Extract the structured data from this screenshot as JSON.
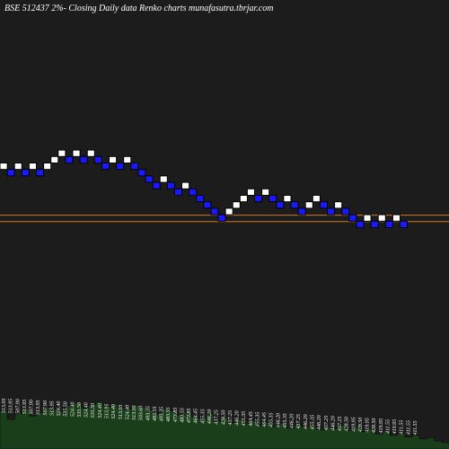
{
  "chart_data": {
    "type": "renko",
    "title": "BSE 512437 2%-  Closing Daily data  Renko  charts munafasutra.tbrjar.com",
    "colors": {
      "background": "#1c1c1c",
      "up_brick": "#ffffff",
      "down_brick": "#1919ff",
      "brick_border": "#000000",
      "reference_line": "#d2781e",
      "volume_fill": "#1a3d1a",
      "volume_border": "#0a0a0a",
      "label_text": "#ffffff"
    },
    "bricks": [
      {
        "dir": "up",
        "level": 9
      },
      {
        "dir": "down",
        "level": 8
      },
      {
        "dir": "up",
        "level": 9
      },
      {
        "dir": "down",
        "level": 8
      },
      {
        "dir": "up",
        "level": 9
      },
      {
        "dir": "down",
        "level": 8
      },
      {
        "dir": "up",
        "level": 9
      },
      {
        "dir": "up",
        "level": 10
      },
      {
        "dir": "up",
        "level": 11
      },
      {
        "dir": "down",
        "level": 10
      },
      {
        "dir": "up",
        "level": 11
      },
      {
        "dir": "down",
        "level": 10
      },
      {
        "dir": "up",
        "level": 11
      },
      {
        "dir": "down",
        "level": 10
      },
      {
        "dir": "down",
        "level": 9
      },
      {
        "dir": "up",
        "level": 10
      },
      {
        "dir": "down",
        "level": 9
      },
      {
        "dir": "up",
        "level": 10
      },
      {
        "dir": "down",
        "level": 9
      },
      {
        "dir": "down",
        "level": 8
      },
      {
        "dir": "down",
        "level": 7
      },
      {
        "dir": "down",
        "level": 6
      },
      {
        "dir": "up",
        "level": 7
      },
      {
        "dir": "down",
        "level": 6
      },
      {
        "dir": "down",
        "level": 5
      },
      {
        "dir": "up",
        "level": 6
      },
      {
        "dir": "down",
        "level": 5
      },
      {
        "dir": "down",
        "level": 4
      },
      {
        "dir": "down",
        "level": 3
      },
      {
        "dir": "down",
        "level": 2
      },
      {
        "dir": "down",
        "level": 1
      },
      {
        "dir": "up",
        "level": 2
      },
      {
        "dir": "up",
        "level": 3
      },
      {
        "dir": "up",
        "level": 4
      },
      {
        "dir": "up",
        "level": 5
      },
      {
        "dir": "down",
        "level": 4
      },
      {
        "dir": "up",
        "level": 5
      },
      {
        "dir": "down",
        "level": 4
      },
      {
        "dir": "down",
        "level": 3
      },
      {
        "dir": "up",
        "level": 4
      },
      {
        "dir": "down",
        "level": 3
      },
      {
        "dir": "down",
        "level": 2
      },
      {
        "dir": "up",
        "level": 3
      },
      {
        "dir": "up",
        "level": 4
      },
      {
        "dir": "down",
        "level": 3
      },
      {
        "dir": "down",
        "level": 2
      },
      {
        "dir": "up",
        "level": 3
      },
      {
        "dir": "down",
        "level": 2
      },
      {
        "dir": "down",
        "level": 1
      },
      {
        "dir": "down",
        "level": 0
      },
      {
        "dir": "up",
        "level": 1
      },
      {
        "dir": "down",
        "level": 0
      },
      {
        "dir": "up",
        "level": 1
      },
      {
        "dir": "down",
        "level": 0
      },
      {
        "dir": "up",
        "level": 1
      },
      {
        "dir": "down",
        "level": 0
      }
    ],
    "reference_lines": [
      0.5,
      1.5
    ],
    "price_labels": [
      "513.95",
      "513.95",
      "507.90",
      "513.95",
      "507.90",
      "513.95",
      "507.90",
      "513.95",
      "524.40",
      "535.50",
      "524.40",
      "535.50",
      "524.40",
      "535.50",
      "524.40",
      "513.95",
      "524.40",
      "513.95",
      "524.40",
      "513.95",
      "503.60",
      "493.35",
      "483.55",
      "493.35",
      "483.55",
      "473.85",
      "483.55",
      "473.85",
      "464.45",
      "455.35",
      "446.20",
      "437.25",
      "428.50",
      "437.25",
      "446.20",
      "455.35",
      "464.45",
      "455.35",
      "464.45",
      "455.35",
      "446.20",
      "455.35",
      "446.20",
      "437.25",
      "446.20",
      "455.35",
      "446.20",
      "437.25",
      "446.20",
      "437.25",
      "428.50",
      "419.95",
      "428.50",
      "419.95",
      "428.50",
      "419.95",
      "411.55",
      "419.95",
      "411.55",
      "411.55",
      "411.55"
    ],
    "volumes": [
      0.53,
      0.41,
      0.49,
      0.56,
      0.46,
      0.51,
      0.58,
      0.55,
      0.52,
      0.6,
      0.64,
      0.57,
      0.62,
      0.66,
      0.59,
      0.63,
      0.57,
      0.55,
      0.61,
      0.58,
      0.54,
      0.49,
      0.56,
      0.53,
      0.47,
      0.51,
      0.45,
      0.42,
      0.49,
      0.38,
      0.44,
      0.36,
      0.41,
      0.35,
      0.39,
      0.33,
      0.37,
      0.31,
      0.36,
      0.29,
      0.34,
      0.3,
      0.32,
      0.27,
      0.31,
      0.28,
      0.33,
      0.26,
      0.3,
      0.24,
      0.28,
      0.21,
      0.25,
      0.19,
      0.22,
      0.17,
      0.19,
      0.14,
      0.16,
      0.11,
      0.09,
      0.05
    ]
  }
}
